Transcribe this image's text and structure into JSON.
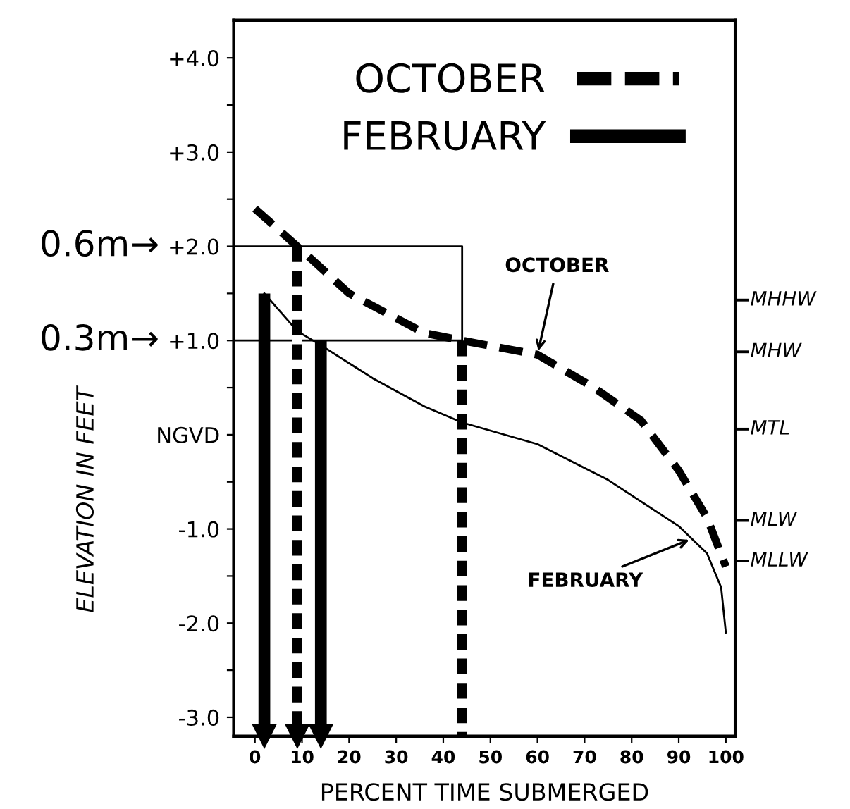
{
  "chart_data": {
    "type": "line",
    "xlabel": "PERCENT TIME SUBMERGED",
    "ylabel": "ELEVATION IN FEET",
    "xlim": [
      -4.5,
      102
    ],
    "xticks": [
      0,
      10,
      20,
      30,
      40,
      50,
      60,
      70,
      80,
      90,
      100
    ],
    "ylim": [
      -3.2,
      4.4
    ],
    "yticks": [
      {
        "value": 4.0,
        "label": "+4.0"
      },
      {
        "value": 3.5,
        "label": null
      },
      {
        "value": 3.0,
        "label": "+3.0"
      },
      {
        "value": 2.5,
        "label": null
      },
      {
        "value": 2.0,
        "label": "+2.0"
      },
      {
        "value": 1.5,
        "label": null
      },
      {
        "value": 1.0,
        "label": "+1.0"
      },
      {
        "value": 0.5,
        "label": null
      },
      {
        "value": 0,
        "label": "NGVD"
      },
      {
        "value": -0.5,
        "label": null
      },
      {
        "value": -1.0,
        "label": "-1.0"
      },
      {
        "value": -1.5,
        "label": null
      },
      {
        "value": -2.0,
        "label": "-2.0"
      },
      {
        "value": -2.5,
        "label": null
      },
      {
        "value": -3.0,
        "label": "-3.0"
      }
    ],
    "grid": false,
    "legend": "top",
    "series": [
      {
        "name": "OCTOBER",
        "color": "#000000",
        "line_style": "dashed",
        "x": [
          0,
          9,
          20,
          36,
          44,
          60,
          72,
          82,
          90,
          96,
          100
        ],
        "values": [
          2.4,
          2.0,
          1.5,
          1.08,
          1.0,
          0.85,
          0.5,
          0.15,
          -0.38,
          -0.88,
          -1.4
        ]
      },
      {
        "name": "FEBRUARY",
        "color": "#000000",
        "line_style": "solid",
        "x": [
          2,
          9,
          14,
          25,
          36,
          44,
          60,
          75,
          90,
          96,
          99,
          100
        ],
        "values": [
          1.5,
          1.1,
          0.95,
          0.6,
          0.3,
          0.13,
          -0.1,
          -0.48,
          -0.97,
          -1.26,
          -1.62,
          -2.1
        ]
      },
      {
        "color": "#000000",
        "line_style": "solid",
        "x": [
          -4.5,
          44,
          44
        ],
        "values": [
          2.0,
          2.0,
          1.0
        ]
      },
      {
        "color": "#000000",
        "line_style": "solid",
        "x": [
          -4.5,
          44
        ],
        "values": [
          1.0,
          1.0
        ]
      },
      {
        "color": "#000000",
        "line_style": "solid",
        "marker": "triangle",
        "x": [
          2,
          2
        ],
        "values": [
          1.5,
          -3.2
        ]
      },
      {
        "color": "#000000",
        "line_style": "dashed",
        "marker": "triangle",
        "x": [
          9,
          9
        ],
        "values": [
          2.0,
          -3.2
        ]
      },
      {
        "color": "#000000",
        "line_style": "solid",
        "marker": "triangle",
        "x": [
          14,
          14
        ],
        "values": [
          1.0,
          -3.2
        ]
      },
      {
        "color": "#000000",
        "line_style": "dashed",
        "x": [
          44,
          44
        ],
        "values": [
          1.0,
          -3.2
        ]
      }
    ],
    "annotations": [
      {
        "text": "OCTOBER",
        "x": 60,
        "y": 0.85
      },
      {
        "text": "FEBRUARY",
        "x": 93,
        "y": -1.1
      },
      {
        "text": "0.6m→",
        "x": -4.5,
        "y": 2.0
      },
      {
        "text": "0.3m→",
        "x": -4.5,
        "y": 1.0
      }
    ],
    "ref_lines": [
      {
        "axis": "y",
        "value": 1.43,
        "label": "MHHW"
      },
      {
        "axis": "y",
        "value": 0.88,
        "label": "MHW"
      },
      {
        "axis": "y",
        "value": 0.06,
        "label": "MTL"
      },
      {
        "axis": "y",
        "value": -0.91,
        "label": "MLW"
      },
      {
        "axis": "y",
        "value": -1.34,
        "label": "MLLW"
      }
    ]
  }
}
